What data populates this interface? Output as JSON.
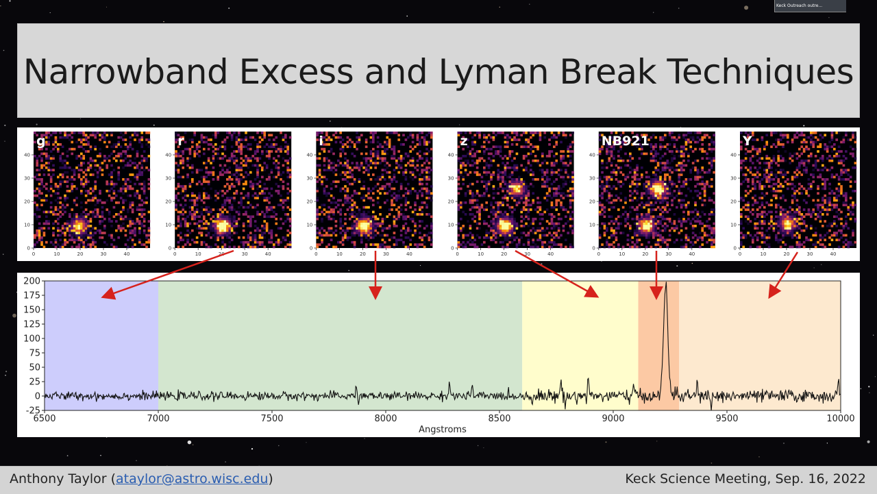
{
  "title": "Narrowband Excess and Lyman Break Techniques",
  "overlay": {
    "label": "Keck Outreach outre..."
  },
  "footer": {
    "author": "Anthony Taylor",
    "email": "ataylor@astro.wisc.edu",
    "event": "Keck Science Meeting, Sep. 16, 2022"
  },
  "chart_data": [
    {
      "type": "heatmap",
      "panels": [
        {
          "label": "g",
          "sources": [
            {
              "x": 19,
              "y": 9,
              "strength": 0.75
            }
          ]
        },
        {
          "label": "r",
          "sources": [
            {
              "x": 20,
              "y": 9,
              "strength": 1.0
            }
          ]
        },
        {
          "label": "i",
          "sources": [
            {
              "x": 20,
              "y": 9,
              "strength": 1.0
            }
          ]
        },
        {
          "label": "z",
          "sources": [
            {
              "x": 20,
              "y": 9,
              "strength": 1.0
            },
            {
              "x": 25,
              "y": 25,
              "strength": 0.7
            }
          ]
        },
        {
          "label": "NB921",
          "sources": [
            {
              "x": 20,
              "y": 9,
              "strength": 0.85
            },
            {
              "x": 25,
              "y": 25,
              "strength": 1.0
            }
          ]
        },
        {
          "label": "Y",
          "sources": [
            {
              "x": 20,
              "y": 10,
              "strength": 0.75
            }
          ]
        }
      ],
      "xticks": [
        0,
        10,
        20,
        30,
        40
      ],
      "yticks": [
        0,
        10,
        20,
        30,
        40
      ],
      "xlim": [
        0,
        50
      ],
      "ylim": [
        0,
        50
      ],
      "colormap": [
        "#000004",
        "#2b0b57",
        "#6a176e",
        "#a52c60",
        "#dd513a",
        "#f98e09",
        "#fcd225",
        "#fcffa4"
      ]
    },
    {
      "type": "line",
      "xlabel": "Angstroms",
      "ylabel": "",
      "xlim": [
        6500,
        10000
      ],
      "ylim": [
        -25,
        200
      ],
      "xticks": [
        6500,
        7000,
        7500,
        8000,
        8500,
        9000,
        9500,
        10000
      ],
      "yticks": [
        -25,
        0,
        25,
        50,
        75,
        100,
        125,
        150,
        175,
        200
      ],
      "bands": [
        {
          "from": 6500,
          "to": 7000,
          "color": "#cdcdfc"
        },
        {
          "from": 7000,
          "to": 8600,
          "color": "#d3e6cf"
        },
        {
          "from": 8600,
          "to": 9110,
          "color": "#fffdcc"
        },
        {
          "from": 9110,
          "to": 9290,
          "color": "#fcc9a4"
        },
        {
          "from": 9290,
          "to": 10000,
          "color": "#fde9cf"
        }
      ],
      "series": [
        {
          "baseline": 0,
          "noise_before_8600": 4,
          "noise_after_8600": 6,
          "peaks": [
            {
              "x": 7870,
              "y": 20
            },
            {
              "x": 7880,
              "y": -12
            },
            {
              "x": 8280,
              "y": 25
            },
            {
              "x": 8380,
              "y": 16
            },
            {
              "x": 8770,
              "y": 30
            },
            {
              "x": 8790,
              "y": -14
            },
            {
              "x": 8890,
              "y": 36
            },
            {
              "x": 9090,
              "y": 18
            },
            {
              "x": 9230,
              "y": 185
            },
            {
              "x": 9370,
              "y": 22
            },
            {
              "x": 9430,
              "y": -20
            },
            {
              "x": 9990,
              "y": 24
            }
          ]
        }
      ]
    }
  ]
}
